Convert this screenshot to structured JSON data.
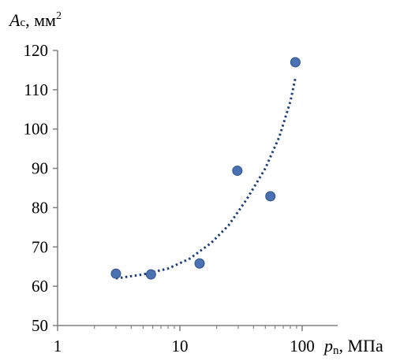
{
  "chart_data": {
    "type": "scatter",
    "title": "",
    "y_axis_label": {
      "symbol": "A",
      "subscript": "c",
      "unit": ", мм",
      "superscript": "2"
    },
    "x_axis_label": {
      "symbol": "p",
      "subscript": "n",
      "unit": ", МПа"
    },
    "x_scale": "log",
    "xlim": [
      1,
      100
    ],
    "ylim": [
      50,
      120
    ],
    "x_ticks": [
      1,
      10,
      100
    ],
    "x_tick_labels": [
      "1",
      "10",
      "100"
    ],
    "y_ticks": [
      50,
      60,
      70,
      80,
      90,
      100,
      110,
      120
    ],
    "y_tick_labels": [
      "50",
      "60",
      "70",
      "80",
      "90",
      "100",
      "110",
      "120"
    ],
    "grid": false,
    "legend": "none",
    "series": [
      {
        "points": [
          {
            "x": 3,
            "y": 63.2
          },
          {
            "x": 5.8,
            "y": 63
          },
          {
            "x": 14.5,
            "y": 65.8
          },
          {
            "x": 29.5,
            "y": 89.4
          },
          {
            "x": 55,
            "y": 82.9
          },
          {
            "x": 88,
            "y": 117
          }
        ]
      }
    ],
    "trendline": {
      "style": "dotted",
      "x_from": 3,
      "x_to": 88,
      "points": [
        {
          "x": 3,
          "y": 62
        },
        {
          "x": 5,
          "y": 63
        },
        {
          "x": 8,
          "y": 64.5
        },
        {
          "x": 12,
          "y": 67
        },
        {
          "x": 18,
          "y": 71
        },
        {
          "x": 25,
          "y": 75.5
        },
        {
          "x": 35,
          "y": 82
        },
        {
          "x": 50,
          "y": 90
        },
        {
          "x": 65,
          "y": 98
        },
        {
          "x": 80,
          "y": 107
        },
        {
          "x": 88,
          "y": 113
        }
      ]
    },
    "colors": {
      "marker": "#4a72b2",
      "marker_edge": "#2e5088",
      "trendline": "#1f3f78",
      "axis": "#808080"
    }
  }
}
